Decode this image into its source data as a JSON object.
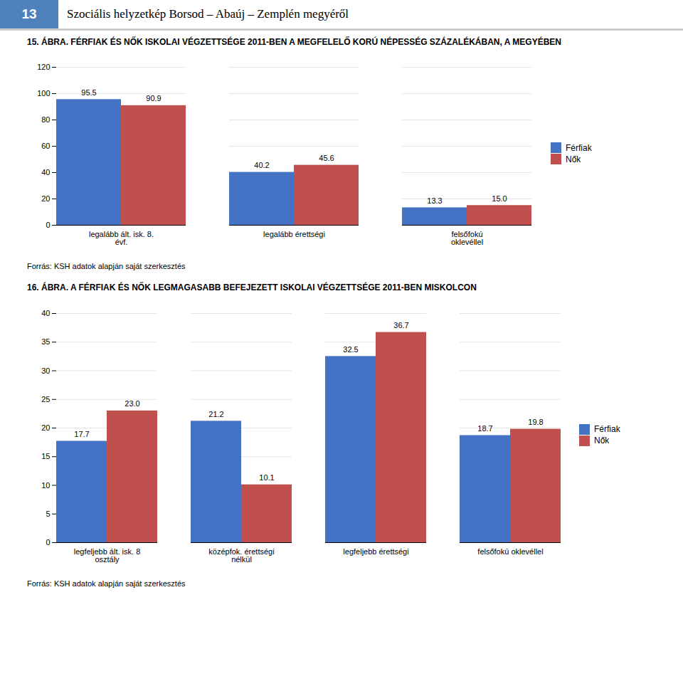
{
  "chart_data": [
    {
      "type": "bar",
      "annotations": [
        "13",
        "Szociális helyzetkép Borsod – Abaúj – Zemplén megyéről"
      ],
      "title": "15. ÁBRA. FÉRFIAK ÉS NŐK ISKOLAI VÉGZETTSÉGE 2011-BEN A MEGFELELŐ KORÚ NÉPESSÉG SZÁZALÉKÁBAN, A MEGYÉBEN",
      "source": "Forrás: KSH adatok alapján saját szerkesztés",
      "categories": [
        "legalább ált. isk. 8.\névf.",
        "legalább érettségi",
        "felsőfokú\noklevéllel"
      ],
      "series": [
        {
          "name": "Férfiak",
          "color": "#4472c4",
          "values": [
            95.5,
            40.2,
            13.3
          ]
        },
        {
          "name": "Nők",
          "color": "#c0504d",
          "values": [
            90.9,
            45.6,
            15.0
          ],
          "value_labels": [
            "90.9",
            "45.6",
            "15.0"
          ]
        }
      ],
      "ylim": [
        0,
        120
      ],
      "yticks": [
        0,
        20,
        40,
        60,
        80,
        100,
        120
      ],
      "grid": true,
      "legend": "right",
      "data_labels": true
    },
    {
      "type": "bar",
      "title": "16. ÁBRA. A FÉRFIAK ÉS NŐK LEGMAGASABB BEFEJEZETT ISKOLAI VÉGZETTSÉGE 2011-BEN MISKOLCON",
      "source": "Forrás: KSH adatok alapján saját szerkesztés",
      "categories": [
        "legfeljebb ált. isk. 8\nosztály",
        "középfok. érettségi\nnélkül",
        "legfeljebb érettségi",
        "felsőfokú oklevéllel"
      ],
      "series": [
        {
          "name": "Férfiak",
          "color": "#4472c4",
          "values": [
            17.7,
            21.2,
            32.5,
            18.7
          ]
        },
        {
          "name": "Nők",
          "color": "#c0504d",
          "values": [
            23.0,
            10.1,
            36.7,
            19.8
          ],
          "value_labels": [
            "23.0",
            "10.1",
            "36.7",
            "19.8"
          ]
        }
      ],
      "ylim": [
        0,
        40
      ],
      "yticks": [
        0,
        5,
        10,
        15,
        20,
        25,
        30,
        35,
        40
      ],
      "grid": true,
      "legend": "right",
      "data_labels": true
    }
  ]
}
